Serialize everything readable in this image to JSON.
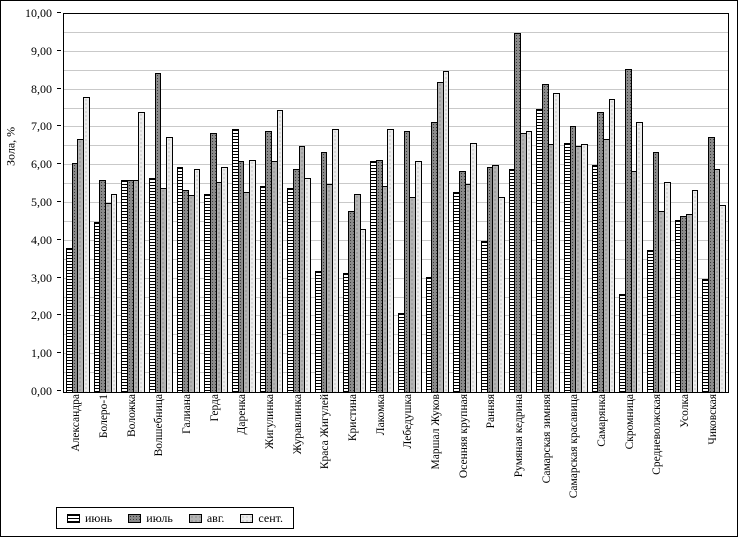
{
  "chart_data": {
    "type": "bar",
    "title": "",
    "xlabel": "",
    "ylabel": "Зола, %",
    "ylim": [
      0,
      10
    ],
    "ytick_step": 1.0,
    "gridline_step": 0.5,
    "decimal_separator": ",",
    "grid": true,
    "legend_position": "bottom-left",
    "categories": [
      "Александра",
      "Болеро-1",
      "Воложка",
      "Волшебница",
      "Галиана",
      "Герда",
      "Даренка",
      "Жигулинка",
      "Журавлинка",
      "Краса Жигулей",
      "Кристина",
      "Лакомка",
      "Лебедушка",
      "Маршал Жуков",
      "Осенняя крупная",
      "Ранняя",
      "Румяная кедрина",
      "Самарская зимняя",
      "Самарская красавица",
      "Самарянка",
      "Скромница",
      "Средневолжская",
      "Усолка",
      "Чиковская"
    ],
    "series": [
      {
        "name": "июнь",
        "pattern": "hlines",
        "values": [
          3.8,
          4.5,
          5.6,
          5.65,
          5.95,
          5.25,
          6.95,
          5.45,
          5.4,
          3.2,
          3.15,
          6.1,
          2.1,
          3.05,
          5.3,
          4.0,
          5.9,
          7.5,
          6.6,
          6.0,
          2.6,
          3.75,
          4.55,
          3.0
        ]
      },
      {
        "name": "июль",
        "pattern": "dots-dark",
        "values": [
          6.05,
          5.6,
          5.6,
          8.45,
          5.35,
          6.85,
          6.1,
          6.9,
          5.9,
          6.35,
          4.8,
          6.15,
          6.9,
          7.15,
          5.85,
          5.95,
          9.5,
          8.15,
          7.05,
          7.4,
          8.55,
          6.35,
          4.65,
          6.75
        ]
      },
      {
        "name": "авг.",
        "pattern": "dots-medium",
        "values": [
          6.7,
          5.0,
          5.6,
          5.4,
          5.2,
          5.55,
          5.3,
          6.1,
          6.5,
          5.5,
          5.25,
          5.45,
          5.15,
          8.2,
          5.5,
          6.0,
          6.85,
          6.55,
          6.5,
          6.7,
          5.85,
          4.8,
          4.7,
          5.9
        ]
      },
      {
        "name": "сент.",
        "pattern": "dots-light",
        "values": [
          7.8,
          5.25,
          7.4,
          6.75,
          5.9,
          5.95,
          6.15,
          7.45,
          5.65,
          6.95,
          4.3,
          6.95,
          6.1,
          8.5,
          6.6,
          5.15,
          6.9,
          7.9,
          6.55,
          7.75,
          7.15,
          5.55,
          5.35,
          4.95
        ]
      }
    ]
  }
}
